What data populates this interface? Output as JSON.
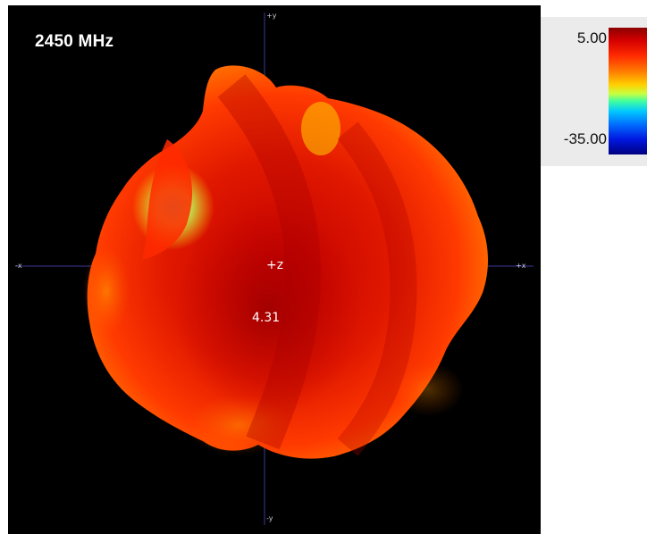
{
  "view": {
    "frequency_label": "2450 MHz",
    "axis_labels": {
      "pos_y": "+y",
      "neg_y": "-y",
      "pos_x": "+x",
      "neg_x": "-x",
      "pos_z": "+z"
    },
    "peak_value": "4.31",
    "background_color": "#000000"
  },
  "colorbar": {
    "max_label": "5.00",
    "min_label": "-35.00",
    "colors": [
      "#8a0000",
      "#d40000",
      "#ff2a00",
      "#ff7800",
      "#ffd000",
      "#40ffa0",
      "#00c8ff",
      "#0070ff",
      "#000080"
    ]
  }
}
